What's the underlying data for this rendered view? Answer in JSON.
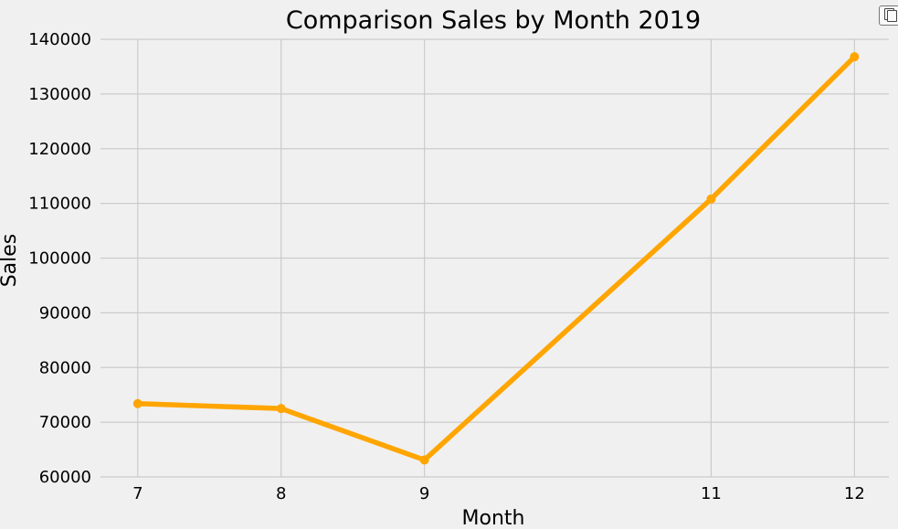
{
  "chart_data": {
    "type": "line",
    "title": "Comparison Sales by Month 2019",
    "xlabel": "Month",
    "ylabel": "Sales",
    "x": [
      7,
      8,
      9,
      11,
      12
    ],
    "xticks": [
      7,
      8,
      9,
      11,
      12
    ],
    "xlim": [
      6.74,
      12.24
    ],
    "yticks": [
      60000,
      70000,
      80000,
      90000,
      100000,
      110000,
      120000,
      130000,
      140000
    ],
    "ylim": [
      60000,
      140000
    ],
    "grid": true,
    "series": [
      {
        "color": "#ffa500",
        "values": [
          73400,
          72500,
          63100,
          110800,
          136800
        ]
      }
    ]
  },
  "toolbar": {
    "copy_icon": "copy-icon"
  }
}
